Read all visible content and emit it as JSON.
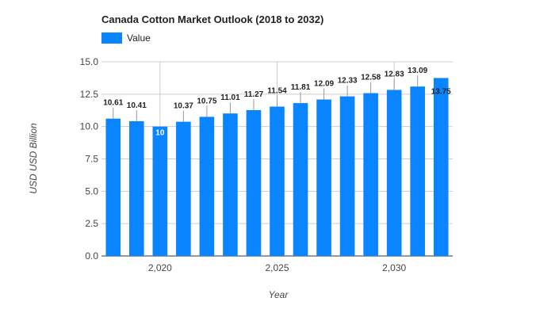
{
  "chart_data": {
    "type": "bar",
    "title": "Canada Cotton Market Outlook (2018 to 2032)",
    "xlabel": "Year",
    "ylabel": "USD USD Billion",
    "x": [
      2018,
      2019,
      2020,
      2021,
      2022,
      2023,
      2024,
      2025,
      2026,
      2027,
      2028,
      2029,
      2030,
      2031,
      2032
    ],
    "series": [
      {
        "name": "Value",
        "color": "#0a84ff",
        "values": [
          10.61,
          10.41,
          10,
          10.37,
          10.75,
          11.01,
          11.27,
          11.54,
          11.81,
          12.09,
          12.33,
          12.58,
          12.83,
          13.09,
          13.75
        ]
      }
    ],
    "data_labels": [
      "10.61",
      "10.41",
      "10",
      "10.37",
      "10.75",
      "11.01",
      "11.27",
      "11.54",
      "11.81",
      "12.09",
      "12.33",
      "12.58",
      "12.83",
      "13.09",
      "13.75"
    ],
    "ylim": [
      0,
      15
    ],
    "y_ticks": [
      "0.0",
      "2.5",
      "5.0",
      "7.5",
      "10.0",
      "12.5",
      "15.0"
    ],
    "x_ticks": [
      "2,020",
      "2,025",
      "2,030"
    ],
    "x_tick_values": [
      2020,
      2025,
      2030
    ],
    "grid": true,
    "legend_position": "top-left"
  }
}
